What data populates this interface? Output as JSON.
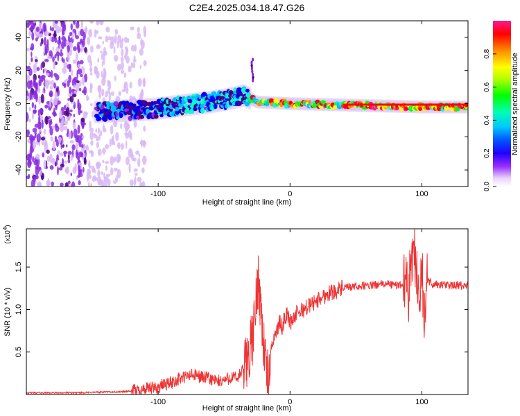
{
  "figure_title": "C2E4.2025.034.18.47.G26",
  "chart_data": [
    {
      "type": "heatmap",
      "name": "spectrogram",
      "xlabel": "Height of straight line (km)",
      "ylabel": "Frequency (Hz)",
      "xlim": [
        -200,
        135
      ],
      "ylim": [
        -50,
        50
      ],
      "xticks": [
        {
          "value": -100,
          "label": "-100"
        },
        {
          "value": 0,
          "label": "0"
        },
        {
          "value": 100,
          "label": "100"
        }
      ],
      "yticks": [
        {
          "value": -40,
          "label": "-40"
        },
        {
          "value": -20,
          "label": "-20"
        },
        {
          "value": 0,
          "label": "0"
        },
        {
          "value": 20,
          "label": "20"
        },
        {
          "value": 40,
          "label": "40"
        }
      ],
      "colorbar": {
        "label": "Normalized spectral amplitude",
        "range": [
          0,
          1
        ],
        "ticks": [
          {
            "value": 0.0,
            "label": "0.0"
          },
          {
            "value": 0.2,
            "label": "0.2"
          },
          {
            "value": 0.4,
            "label": "0.4"
          },
          {
            "value": 0.6,
            "label": "0.6"
          },
          {
            "value": 0.8,
            "label": "0.8"
          }
        ],
        "colors": [
          "#ffffff",
          "#d9b8f5",
          "#8a2be2",
          "#4b0082",
          "#0000ff",
          "#00bfff",
          "#00ffcc",
          "#00ff00",
          "#ffff00",
          "#ff8c00",
          "#ff0000",
          "#ff1493"
        ]
      },
      "ridge": [
        {
          "x": -145,
          "freq": -5
        },
        {
          "x": -120,
          "freq": -4
        },
        {
          "x": -100,
          "freq": -3
        },
        {
          "x": -80,
          "freq": -1
        },
        {
          "x": -60,
          "freq": 1
        },
        {
          "x": -45,
          "freq": 3
        },
        {
          "x": -35,
          "freq": 5
        },
        {
          "x": -25,
          "freq": 1
        },
        {
          "x": 0,
          "freq": 0
        },
        {
          "x": 50,
          "freq": -1
        },
        {
          "x": 100,
          "freq": -2
        },
        {
          "x": 135,
          "freq": -2
        }
      ]
    },
    {
      "type": "line",
      "name": "snr",
      "xlabel": "Height of straight line (km)",
      "ylabel": "SNR (10 * v/v)",
      "yscale_note": "(x10",
      "yscale_exp": "4",
      "xlim": [
        -200,
        135
      ],
      "ylim": [
        0,
        1.95
      ],
      "line_color": "#ee3333",
      "xticks": [
        {
          "value": -100,
          "label": "-100"
        },
        {
          "value": 0,
          "label": "0"
        },
        {
          "value": 100,
          "label": "100"
        }
      ],
      "yticks": [
        {
          "value": 0.5,
          "label": "0.5"
        },
        {
          "value": 1.0,
          "label": "1.0"
        },
        {
          "value": 1.5,
          "label": "1.5"
        }
      ],
      "series": [
        {
          "name": "SNR",
          "x": [
            -200,
            -180,
            -160,
            -140,
            -130,
            -120,
            -110,
            -100,
            -95,
            -90,
            -85,
            -80,
            -75,
            -70,
            -65,
            -60,
            -55,
            -50,
            -45,
            -40,
            -35,
            -30,
            -28,
            -26,
            -24,
            -22,
            -20,
            -18,
            -16,
            -14,
            -12,
            -10,
            -8,
            -6,
            -4,
            -2,
            0,
            5,
            10,
            15,
            20,
            25,
            30,
            35,
            40,
            45,
            50,
            55,
            60,
            65,
            70,
            75,
            80,
            85,
            88,
            90,
            92,
            94,
            96,
            98,
            100,
            102,
            104,
            108,
            115,
            125,
            135
          ],
          "y": [
            0.02,
            0.02,
            0.02,
            0.03,
            0.03,
            0.04,
            0.06,
            0.08,
            0.12,
            0.14,
            0.18,
            0.2,
            0.23,
            0.22,
            0.2,
            0.18,
            0.15,
            0.17,
            0.2,
            0.19,
            0.3,
            0.55,
            0.7,
            1.0,
            1.4,
            1.0,
            0.6,
            0.3,
            0.1,
            0.55,
            0.7,
            0.75,
            0.85,
            0.8,
            0.9,
            0.95,
            0.85,
            0.95,
            1.0,
            1.05,
            1.1,
            1.15,
            1.2,
            1.22,
            1.25,
            1.26,
            1.27,
            1.28,
            1.28,
            1.29,
            1.3,
            1.3,
            1.28,
            1.3,
            1.35,
            1.2,
            1.6,
            1.8,
            1.4,
            1.1,
            1.5,
            0.8,
            1.35,
            1.3,
            1.29,
            1.28,
            1.28
          ]
        }
      ]
    }
  ]
}
